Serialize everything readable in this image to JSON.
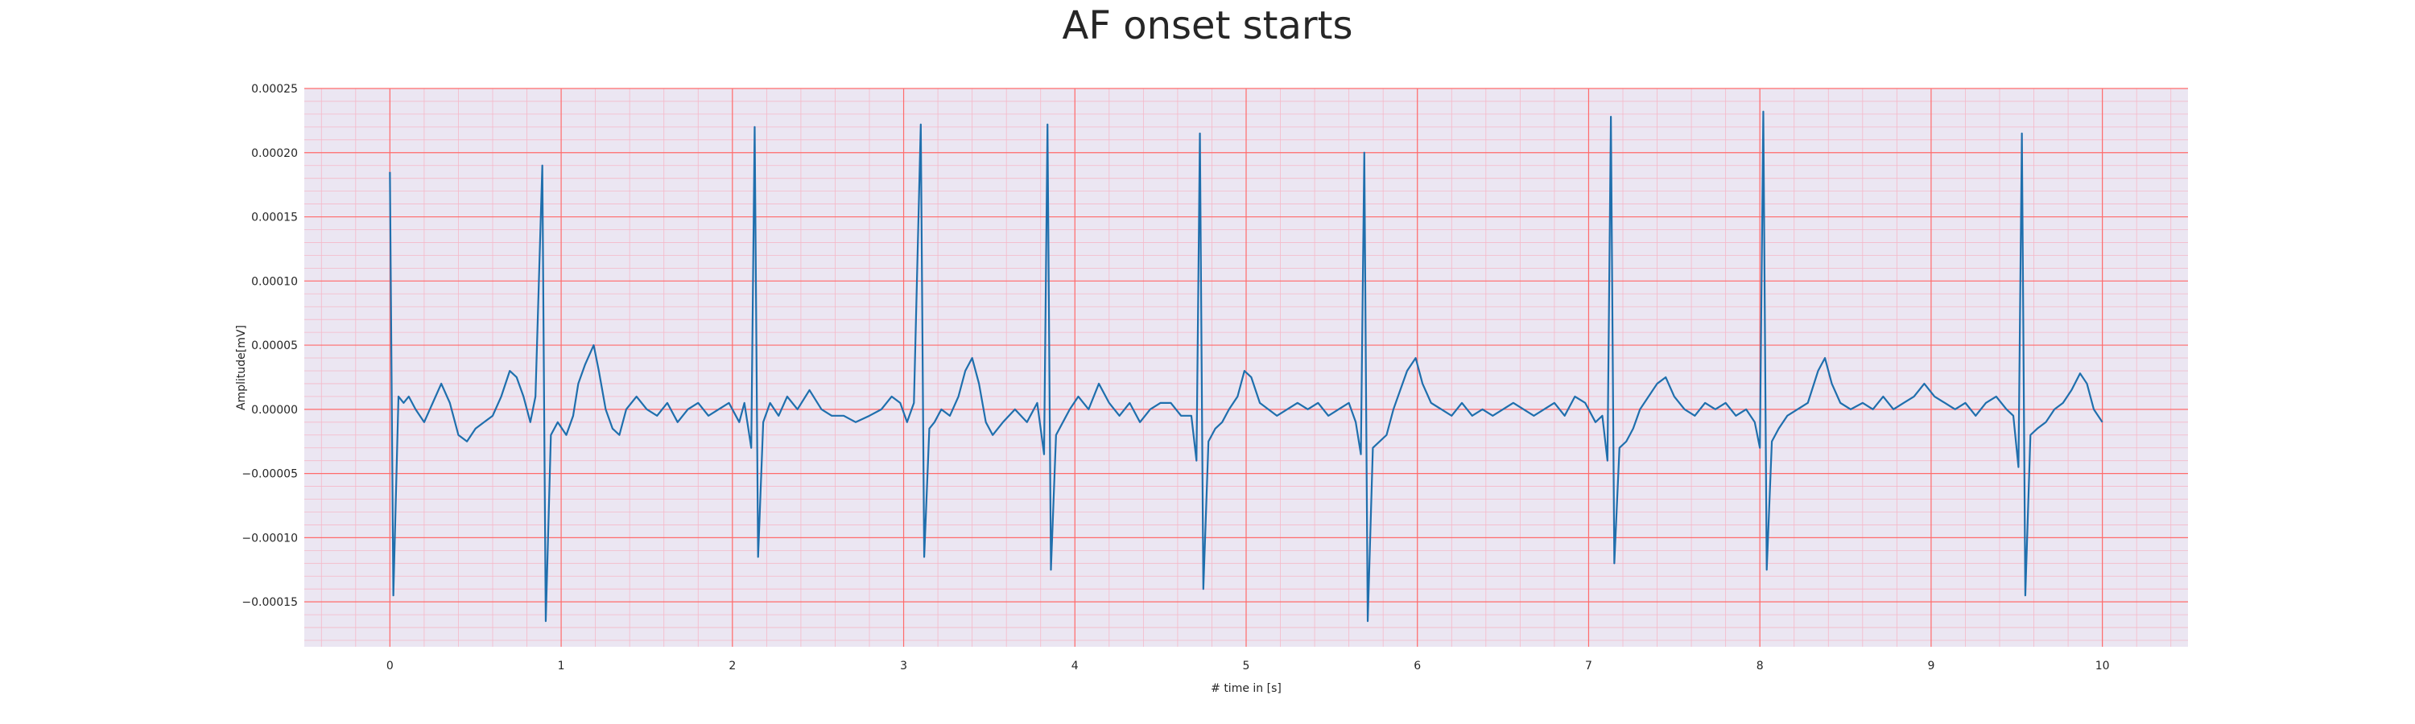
{
  "chart_data": {
    "type": "line",
    "title": "AF onset starts",
    "xlabel": "# time in [s]",
    "ylabel": "Amplitude[mV]",
    "xlim": [
      -0.5,
      10.5
    ],
    "ylim": [
      -0.000185,
      0.00025
    ],
    "x_ticks": [
      0,
      1,
      2,
      3,
      4,
      5,
      6,
      7,
      8,
      9,
      10
    ],
    "x_tick_labels": [
      "0",
      "1",
      "2",
      "3",
      "4",
      "5",
      "6",
      "7",
      "8",
      "9",
      "10"
    ],
    "y_ticks": [
      -0.00015,
      -0.0001,
      -5e-05,
      0,
      5e-05,
      0.0001,
      0.00015,
      0.0002,
      0.00025
    ],
    "y_tick_labels": [
      "−0.00015",
      "−0.00010",
      "−0.00005",
      "0.00000",
      "0.00005",
      "0.00010",
      "0.00015",
      "0.00020",
      "0.00025"
    ],
    "grid": true,
    "background_color": "#ebe6f2",
    "major_grid_color": "#ff6b6b",
    "minor_grid_color": "#f5b8c8",
    "series": [
      {
        "color": "#1f6fad",
        "points": [
          [
            0.0,
            0.000185
          ],
          [
            0.02,
            -0.000145
          ],
          [
            0.05,
            1e-05
          ],
          [
            0.08,
            5e-06
          ],
          [
            0.11,
            1e-05
          ],
          [
            0.15,
            0.0
          ],
          [
            0.2,
            -1e-05
          ],
          [
            0.25,
            5e-06
          ],
          [
            0.3,
            2e-05
          ],
          [
            0.35,
            5e-06
          ],
          [
            0.4,
            -2e-05
          ],
          [
            0.45,
            -2.5e-05
          ],
          [
            0.5,
            -1.5e-05
          ],
          [
            0.55,
            -1e-05
          ],
          [
            0.6,
            -5e-06
          ],
          [
            0.65,
            1e-05
          ],
          [
            0.7,
            3e-05
          ],
          [
            0.74,
            2.5e-05
          ],
          [
            0.78,
            1e-05
          ],
          [
            0.82,
            -1e-05
          ],
          [
            0.85,
            1e-05
          ],
          [
            0.89,
            0.00019
          ],
          [
            0.91,
            -0.000165
          ],
          [
            0.94,
            -2e-05
          ],
          [
            0.98,
            -1e-05
          ],
          [
            1.03,
            -2e-05
          ],
          [
            1.07,
            -5e-06
          ],
          [
            1.1,
            2e-05
          ],
          [
            1.14,
            3.5e-05
          ],
          [
            1.19,
            5e-05
          ],
          [
            1.22,
            3e-05
          ],
          [
            1.26,
            0.0
          ],
          [
            1.3,
            -1.5e-05
          ],
          [
            1.34,
            -2e-05
          ],
          [
            1.38,
            0.0
          ],
          [
            1.44,
            1e-05
          ],
          [
            1.5,
            0.0
          ],
          [
            1.56,
            -5e-06
          ],
          [
            1.62,
            5e-06
          ],
          [
            1.68,
            -1e-05
          ],
          [
            1.74,
            0.0
          ],
          [
            1.8,
            5e-06
          ],
          [
            1.86,
            -5e-06
          ],
          [
            1.92,
            0.0
          ],
          [
            1.98,
            5e-06
          ],
          [
            2.04,
            -1e-05
          ],
          [
            2.07,
            5e-06
          ],
          [
            2.11,
            -3e-05
          ],
          [
            2.13,
            0.00022
          ],
          [
            2.15,
            -0.000115
          ],
          [
            2.18,
            -1e-05
          ],
          [
            2.22,
            5e-06
          ],
          [
            2.27,
            -5e-06
          ],
          [
            2.32,
            1e-05
          ],
          [
            2.38,
            0.0
          ],
          [
            2.45,
            1.5e-05
          ],
          [
            2.52,
            0.0
          ],
          [
            2.58,
            -5e-06
          ],
          [
            2.65,
            -5e-06
          ],
          [
            2.72,
            -1e-05
          ],
          [
            2.8,
            -5e-06
          ],
          [
            2.87,
            0.0
          ],
          [
            2.93,
            1e-05
          ],
          [
            2.98,
            5e-06
          ],
          [
            3.02,
            -1e-05
          ],
          [
            3.06,
            5e-06
          ],
          [
            3.1,
            0.000222
          ],
          [
            3.12,
            -0.000115
          ],
          [
            3.15,
            -1.5e-05
          ],
          [
            3.18,
            -1e-05
          ],
          [
            3.22,
            0.0
          ],
          [
            3.27,
            -5e-06
          ],
          [
            3.32,
            1e-05
          ],
          [
            3.36,
            3e-05
          ],
          [
            3.4,
            4e-05
          ],
          [
            3.44,
            2e-05
          ],
          [
            3.48,
            -1e-05
          ],
          [
            3.52,
            -2e-05
          ],
          [
            3.58,
            -1e-05
          ],
          [
            3.65,
            0.0
          ],
          [
            3.72,
            -1e-05
          ],
          [
            3.78,
            5e-06
          ],
          [
            3.82,
            -3.5e-05
          ],
          [
            3.84,
            0.000222
          ],
          [
            3.86,
            -0.000125
          ],
          [
            3.89,
            -2e-05
          ],
          [
            3.93,
            -1e-05
          ],
          [
            3.97,
            0.0
          ],
          [
            4.02,
            1e-05
          ],
          [
            4.08,
            0.0
          ],
          [
            4.14,
            2e-05
          ],
          [
            4.2,
            5e-06
          ],
          [
            4.26,
            -5e-06
          ],
          [
            4.32,
            5e-06
          ],
          [
            4.38,
            -1e-05
          ],
          [
            4.44,
            0.0
          ],
          [
            4.5,
            5e-06
          ],
          [
            4.56,
            5e-06
          ],
          [
            4.62,
            -5e-06
          ],
          [
            4.68,
            -5e-06
          ],
          [
            4.71,
            -4e-05
          ],
          [
            4.73,
            0.000215
          ],
          [
            4.75,
            -0.00014
          ],
          [
            4.78,
            -2.5e-05
          ],
          [
            4.82,
            -1.5e-05
          ],
          [
            4.86,
            -1e-05
          ],
          [
            4.9,
            0.0
          ],
          [
            4.95,
            1e-05
          ],
          [
            4.99,
            3e-05
          ],
          [
            5.03,
            2.5e-05
          ],
          [
            5.08,
            5e-06
          ],
          [
            5.13,
            0.0
          ],
          [
            5.18,
            -5e-06
          ],
          [
            5.24,
            0.0
          ],
          [
            5.3,
            5e-06
          ],
          [
            5.36,
            0.0
          ],
          [
            5.42,
            5e-06
          ],
          [
            5.48,
            -5e-06
          ],
          [
            5.54,
            0.0
          ],
          [
            5.6,
            5e-06
          ],
          [
            5.64,
            -1e-05
          ],
          [
            5.67,
            -3.5e-05
          ],
          [
            5.69,
            0.0002
          ],
          [
            5.71,
            -0.000165
          ],
          [
            5.74,
            -3e-05
          ],
          [
            5.78,
            -2.5e-05
          ],
          [
            5.82,
            -2e-05
          ],
          [
            5.86,
            0.0
          ],
          [
            5.9,
            1.5e-05
          ],
          [
            5.94,
            3e-05
          ],
          [
            5.99,
            4e-05
          ],
          [
            6.03,
            2e-05
          ],
          [
            6.08,
            5e-06
          ],
          [
            6.14,
            0.0
          ],
          [
            6.2,
            -5e-06
          ],
          [
            6.26,
            5e-06
          ],
          [
            6.32,
            -5e-06
          ],
          [
            6.38,
            0.0
          ],
          [
            6.44,
            -5e-06
          ],
          [
            6.5,
            0.0
          ],
          [
            6.56,
            5e-06
          ],
          [
            6.62,
            0.0
          ],
          [
            6.68,
            -5e-06
          ],
          [
            6.74,
            0.0
          ],
          [
            6.8,
            5e-06
          ],
          [
            6.86,
            -5e-06
          ],
          [
            6.92,
            1e-05
          ],
          [
            6.98,
            5e-06
          ],
          [
            7.04,
            -1e-05
          ],
          [
            7.08,
            -5e-06
          ],
          [
            7.11,
            -4e-05
          ],
          [
            7.13,
            0.000228
          ],
          [
            7.15,
            -0.00012
          ],
          [
            7.18,
            -3e-05
          ],
          [
            7.22,
            -2.5e-05
          ],
          [
            7.26,
            -1.5e-05
          ],
          [
            7.3,
            0.0
          ],
          [
            7.35,
            1e-05
          ],
          [
            7.4,
            2e-05
          ],
          [
            7.45,
            2.5e-05
          ],
          [
            7.5,
            1e-05
          ],
          [
            7.56,
            0.0
          ],
          [
            7.62,
            -5e-06
          ],
          [
            7.68,
            5e-06
          ],
          [
            7.74,
            0.0
          ],
          [
            7.8,
            5e-06
          ],
          [
            7.86,
            -5e-06
          ],
          [
            7.92,
            0.0
          ],
          [
            7.97,
            -1e-05
          ],
          [
            8.0,
            -3e-05
          ],
          [
            8.02,
            0.000232
          ],
          [
            8.04,
            -0.000125
          ],
          [
            8.07,
            -2.5e-05
          ],
          [
            8.11,
            -1.5e-05
          ],
          [
            8.16,
            -5e-06
          ],
          [
            8.22,
            0.0
          ],
          [
            8.28,
            5e-06
          ],
          [
            8.34,
            3e-05
          ],
          [
            8.38,
            4e-05
          ],
          [
            8.42,
            2e-05
          ],
          [
            8.47,
            5e-06
          ],
          [
            8.53,
            0.0
          ],
          [
            8.6,
            5e-06
          ],
          [
            8.66,
            0.0
          ],
          [
            8.72,
            1e-05
          ],
          [
            8.78,
            0.0
          ],
          [
            8.84,
            5e-06
          ],
          [
            8.9,
            1e-05
          ],
          [
            8.96,
            2e-05
          ],
          [
            9.02,
            1e-05
          ],
          [
            9.08,
            5e-06
          ],
          [
            9.14,
            0.0
          ],
          [
            9.2,
            5e-06
          ],
          [
            9.26,
            -5e-06
          ],
          [
            9.32,
            5e-06
          ],
          [
            9.38,
            1e-05
          ],
          [
            9.44,
            0.0
          ],
          [
            9.48,
            -5e-06
          ],
          [
            9.51,
            -4.5e-05
          ],
          [
            9.53,
            0.000215
          ],
          [
            9.55,
            -0.000145
          ],
          [
            9.58,
            -2e-05
          ],
          [
            9.62,
            -1.5e-05
          ],
          [
            9.67,
            -1e-05
          ],
          [
            9.72,
            0.0
          ],
          [
            9.77,
            5e-06
          ],
          [
            9.82,
            1.5e-05
          ],
          [
            9.87,
            2.8e-05
          ],
          [
            9.91,
            2e-05
          ],
          [
            9.95,
            0.0
          ],
          [
            10.0,
            -1e-05
          ]
        ]
      }
    ]
  }
}
